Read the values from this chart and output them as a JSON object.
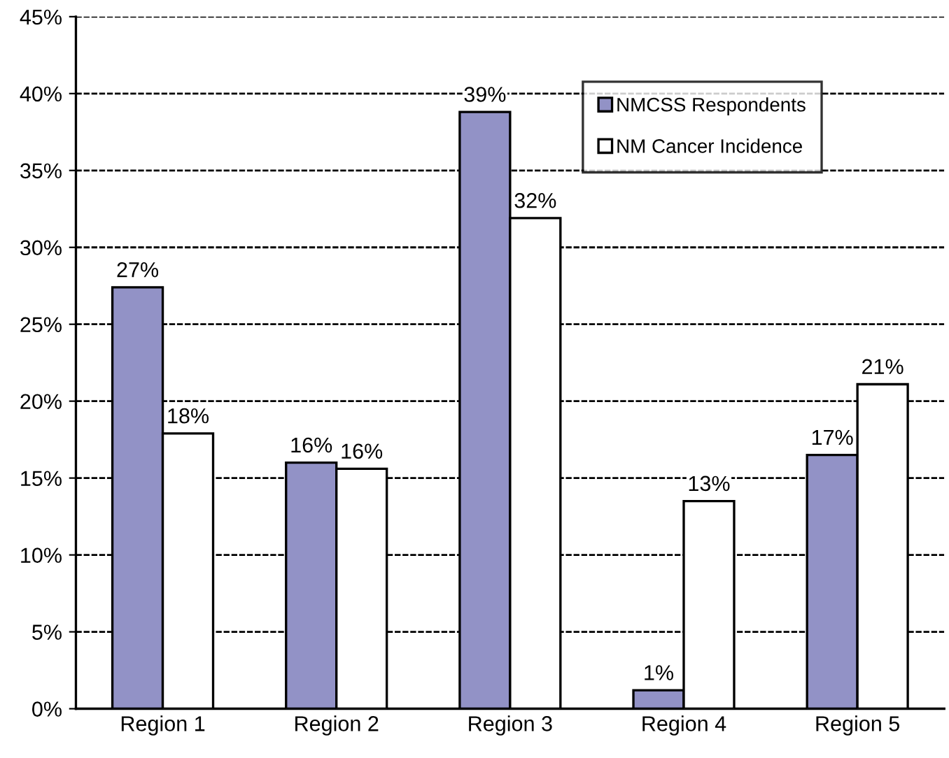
{
  "chart_data": {
    "type": "bar",
    "categories": [
      "Region 1",
      "Region 2",
      "Region 3",
      "Region 4",
      "Region 5"
    ],
    "series": [
      {
        "name": "NMCSS Respondents",
        "color": "#9292c6",
        "values": [
          27.4,
          16.0,
          38.8,
          1.2,
          16.5
        ],
        "value_labels": [
          "27%",
          "16%",
          "39%",
          "1%",
          "17%"
        ]
      },
      {
        "name": "NM Cancer Incidence",
        "color": "#ffffff",
        "values": [
          17.9,
          15.6,
          31.9,
          13.5,
          21.1
        ],
        "value_labels": [
          "18%",
          "16%",
          "32%",
          "13%",
          "21%"
        ]
      }
    ],
    "ylim": [
      0,
      45
    ],
    "yticks": [
      {
        "value": 0,
        "label": "0%"
      },
      {
        "value": 5,
        "label": "5%"
      },
      {
        "value": 10,
        "label": "10%"
      },
      {
        "value": 15,
        "label": "15%"
      },
      {
        "value": 20,
        "label": "20%"
      },
      {
        "value": 25,
        "label": "25%"
      },
      {
        "value": 30,
        "label": "30%"
      },
      {
        "value": 35,
        "label": "35%"
      },
      {
        "value": 40,
        "label": "40%"
      },
      {
        "value": 45,
        "label": "45%"
      }
    ],
    "grid": "y",
    "legend": "top right"
  }
}
